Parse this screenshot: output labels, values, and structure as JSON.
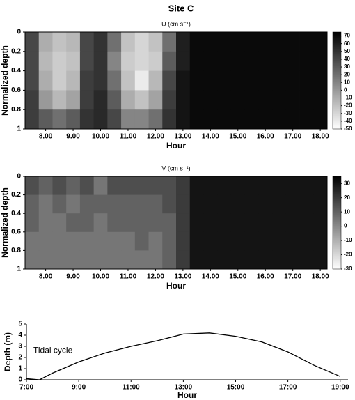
{
  "title": "Site C",
  "chart_data": [
    {
      "type": "heatmap",
      "title": "U (cm s⁻¹)",
      "x_label": "Hour",
      "y_label": "Normalized depth",
      "colormap": [
        "#ffffff",
        "#000000"
      ],
      "x": [
        7.5,
        8,
        8.5,
        9,
        9.5,
        10,
        10.5,
        11,
        11.5,
        12,
        12.5,
        13,
        13.5,
        14,
        14.5,
        15,
        15.5,
        16,
        16.5,
        17,
        17.5,
        18
      ],
      "y": [
        0.1,
        0.3,
        0.5,
        0.7,
        0.9
      ],
      "z": [
        [
          40,
          -10,
          -20,
          -15,
          40,
          50,
          20,
          -20,
          -30,
          -20,
          20,
          60,
          70,
          70,
          70,
          70,
          70,
          70,
          70,
          70,
          70,
          70
        ],
        [
          40,
          -15,
          -25,
          -20,
          40,
          50,
          10,
          -25,
          -30,
          -25,
          30,
          60,
          70,
          70,
          70,
          70,
          70,
          70,
          70,
          70,
          70,
          70
        ],
        [
          40,
          -10,
          -25,
          -15,
          45,
          50,
          20,
          -20,
          -40,
          -15,
          40,
          65,
          70,
          70,
          70,
          70,
          70,
          70,
          70,
          70,
          70,
          70
        ],
        [
          45,
          0,
          -15,
          -5,
          45,
          55,
          30,
          -10,
          -20,
          -5,
          45,
          65,
          70,
          70,
          70,
          70,
          70,
          70,
          70,
          70,
          70,
          70
        ],
        [
          45,
          30,
          20,
          30,
          50,
          55,
          40,
          10,
          10,
          20,
          50,
          65,
          70,
          70,
          70,
          70,
          70,
          70,
          70,
          70,
          70,
          70
        ]
      ],
      "xlim": [
        7.25,
        18.25
      ],
      "xticks": [
        {
          "value": 8,
          "label": "8.00"
        },
        {
          "value": 9,
          "label": "9.00"
        },
        {
          "value": 10,
          "label": "10.00"
        },
        {
          "value": 11,
          "label": "11.00"
        },
        {
          "value": 12,
          "label": "12.00"
        },
        {
          "value": 13,
          "label": "13.00"
        },
        {
          "value": 14,
          "label": "14.00"
        },
        {
          "value": 15,
          "label": "15.00"
        },
        {
          "value": 16,
          "label": "16.00"
        },
        {
          "value": 17,
          "label": "17.00"
        },
        {
          "value": 18,
          "label": "18.00"
        }
      ],
      "ylim": [
        0,
        1
      ],
      "yticks": [
        0,
        0.2,
        0.4,
        0.6,
        0.8,
        1
      ],
      "y_inverted": true,
      "zlim": [
        -50,
        75
      ],
      "zticks": [
        70,
        60,
        50,
        40,
        30,
        20,
        10,
        0,
        -10,
        -20,
        -30,
        -40,
        -50
      ]
    },
    {
      "type": "heatmap",
      "title": "V (cm s⁻¹)",
      "x_label": "Hour",
      "y_label": "Normalized depth",
      "colormap": [
        "#ffffff",
        "#000000"
      ],
      "x": [
        7.5,
        8,
        8.5,
        9,
        9.5,
        10,
        10.5,
        11,
        11.5,
        12,
        12.5,
        13,
        13.5,
        14,
        14.5,
        15,
        15.5,
        16,
        16.5,
        17,
        17.5,
        18
      ],
      "y": [
        0.1,
        0.3,
        0.5,
        0.7,
        0.9
      ],
      "z": [
        [
          15,
          10,
          15,
          10,
          15,
          5,
          15,
          15,
          15,
          15,
          15,
          20,
          30,
          30,
          30,
          30,
          30,
          30,
          30,
          30,
          30,
          30
        ],
        [
          10,
          5,
          10,
          5,
          10,
          10,
          10,
          10,
          10,
          10,
          15,
          20,
          30,
          30,
          30,
          30,
          30,
          30,
          30,
          30,
          30,
          30
        ],
        [
          10,
          5,
          5,
          10,
          10,
          5,
          10,
          10,
          10,
          10,
          10,
          20,
          30,
          30,
          30,
          30,
          30,
          30,
          30,
          30,
          30,
          30
        ],
        [
          5,
          5,
          5,
          5,
          5,
          5,
          5,
          5,
          10,
          5,
          10,
          20,
          30,
          30,
          30,
          30,
          30,
          30,
          30,
          30,
          30,
          30
        ],
        [
          5,
          5,
          5,
          5,
          5,
          5,
          5,
          5,
          5,
          5,
          10,
          20,
          30,
          30,
          30,
          30,
          30,
          30,
          30,
          30,
          30,
          30
        ]
      ],
      "xlim": [
        7.25,
        18.25
      ],
      "xticks": [
        {
          "value": 8,
          "label": "8.00"
        },
        {
          "value": 9,
          "label": "9.00"
        },
        {
          "value": 10,
          "label": "10.00"
        },
        {
          "value": 11,
          "label": "11.00"
        },
        {
          "value": 12,
          "label": "12.00"
        },
        {
          "value": 13,
          "label": "13.00"
        },
        {
          "value": 14,
          "label": "14.00"
        },
        {
          "value": 15,
          "label": "15.00"
        },
        {
          "value": 16,
          "label": "16.00"
        },
        {
          "value": 17,
          "label": "17.00"
        },
        {
          "value": 18,
          "label": "18.00"
        }
      ],
      "ylim": [
        0,
        1
      ],
      "yticks": [
        0,
        0.2,
        0.4,
        0.6,
        0.8,
        1
      ],
      "y_inverted": true,
      "zlim": [
        -30,
        35
      ],
      "zticks": [
        30,
        20,
        10,
        0,
        -10,
        -20,
        -30
      ]
    },
    {
      "type": "line",
      "x_label": "Hour",
      "y_label": "Depth (m)",
      "annotation": "Tidal cycle",
      "x": [
        7,
        7.5,
        8,
        9,
        10,
        11,
        12,
        13,
        14,
        15,
        16,
        17,
        18,
        19
      ],
      "values": [
        0.1,
        0,
        0.6,
        1.6,
        2.4,
        3.0,
        3.5,
        4.1,
        4.2,
        3.9,
        3.4,
        2.5,
        1.3,
        0.3
      ],
      "color": "#000000",
      "xlim": [
        7,
        19.3
      ],
      "xticks": [
        {
          "value": 7,
          "label": "7:00"
        },
        {
          "value": 9,
          "label": "9:00"
        },
        {
          "value": 11,
          "label": "11:00"
        },
        {
          "value": 13,
          "label": "13:00"
        },
        {
          "value": 15,
          "label": "15:00"
        },
        {
          "value": 17,
          "label": "17:00"
        },
        {
          "value": 19,
          "label": "19:00"
        }
      ],
      "ylim": [
        0,
        5
      ],
      "yticks": [
        0,
        1,
        2,
        3,
        4,
        5
      ]
    }
  ]
}
